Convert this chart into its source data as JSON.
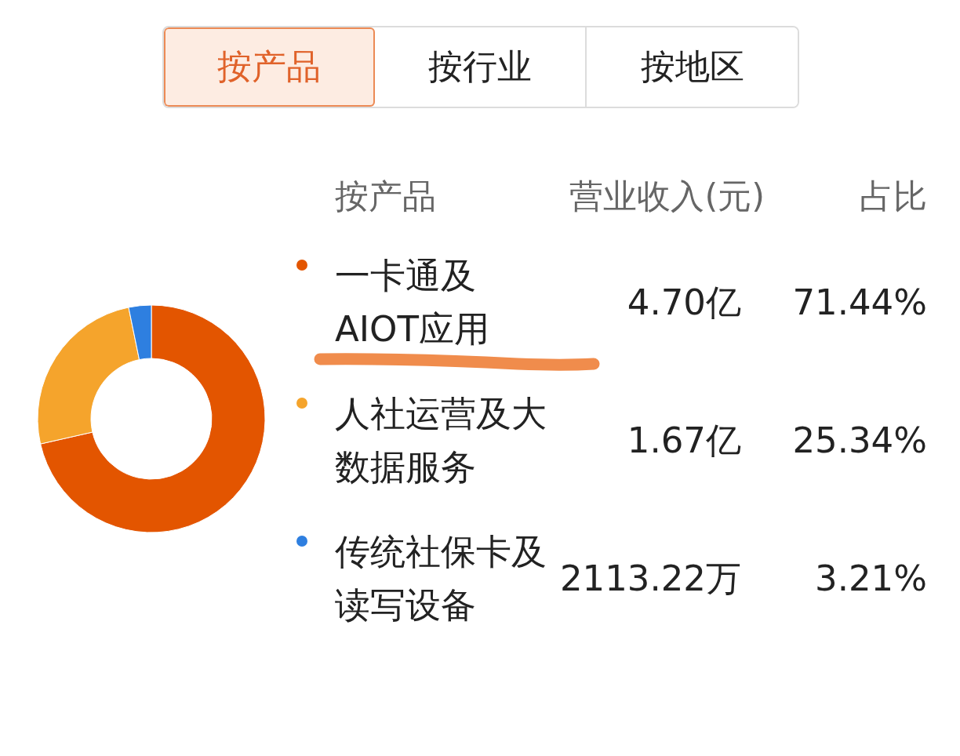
{
  "chart_data": {
    "type": "donut",
    "legend_title": "按产品",
    "legend": "right",
    "categories": [
      "一卡通及AIOT应用",
      "人社运营及大数据服务",
      "传统社保卡及读写设备"
    ],
    "values": [
      71.44,
      25.34,
      3.21
    ],
    "colors": [
      "#e35500",
      "#f5a42c",
      "#2e7fe0"
    ],
    "value_labels": [
      "71.44%",
      "25.34%",
      "3.21%"
    ],
    "annotations": [
      "按产品",
      "按行业",
      "按地区",
      "营业收入(元)",
      "占比",
      {
        "text": "4.70亿",
        "x": "一卡通及AIOT应用"
      },
      {
        "text": "1.67亿",
        "x": "人社运营及大数据服务"
      },
      {
        "text": "2113.22万",
        "x": "传统社保卡及读写设备"
      }
    ]
  }
}
